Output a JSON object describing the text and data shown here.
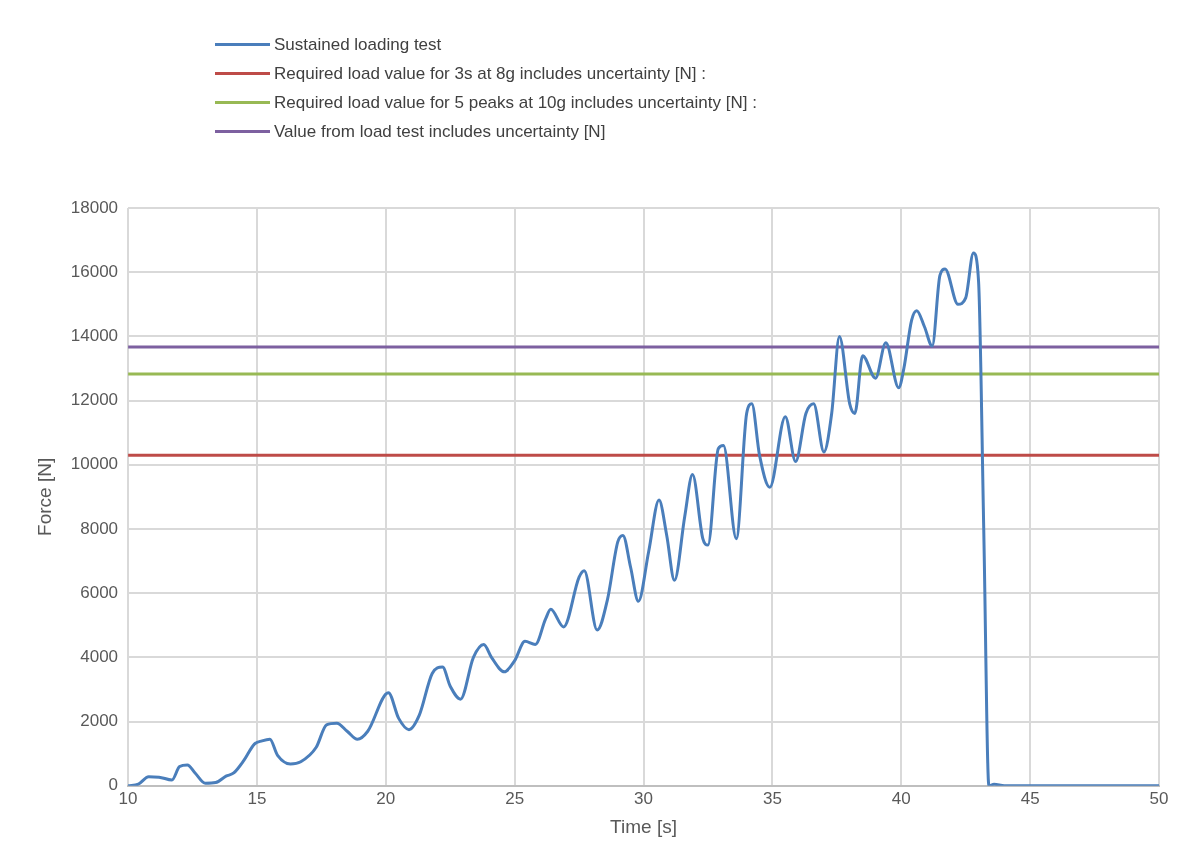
{
  "chart_data": {
    "type": "line",
    "xlabel": "Time [s]",
    "ylabel": "Force [N]",
    "xlim": [
      10,
      50
    ],
    "xticks": [
      10,
      15,
      20,
      25,
      30,
      35,
      40,
      45,
      50
    ],
    "ylim": [
      0,
      18000
    ],
    "yticks": [
      0,
      2000,
      4000,
      6000,
      8000,
      10000,
      12000,
      14000,
      16000,
      18000
    ],
    "grid": true,
    "legend": "top",
    "marker": "none",
    "line_style": "solid",
    "series": [
      {
        "name": "Sustained loading test",
        "color": "#4a7ebb",
        "x": [
          10,
          10.4,
          10.8,
          11.2,
          11.7,
          12,
          12.3,
          12.6,
          13,
          13.4,
          13.8,
          14.1,
          14.5,
          14.9,
          15.2,
          15.5,
          15.8,
          16.3,
          16.7,
          17.3,
          17.7,
          18.1,
          18.5,
          18.9,
          19.3,
          20.1,
          20.5,
          20.9,
          21.3,
          21.8,
          22.2,
          22.5,
          22.9,
          23.4,
          23.8,
          24.1,
          24.6,
          25,
          25.4,
          25.8,
          26.2,
          26.4,
          26.9,
          27.5,
          27.7,
          28.2,
          28.6,
          29,
          29.2,
          29.5,
          29.8,
          30.2,
          30.6,
          30.9,
          31.2,
          31.6,
          31.9,
          32.3,
          32.5,
          32.9,
          33.1,
          33.6,
          34,
          34.2,
          34.5,
          34.9,
          35.5,
          35.9,
          36.3,
          36.6,
          37,
          37.3,
          37.6,
          38,
          38.2,
          38.5,
          39,
          39.4,
          39.9,
          40.1,
          40.4,
          40.6,
          40.9,
          41.2,
          41.5,
          41.7,
          42.2,
          42.5,
          42.8,
          43,
          43.2,
          43.4,
          43.6,
          44,
          50
        ],
        "values": [
          0,
          50,
          280,
          270,
          180,
          600,
          650,
          400,
          80,
          100,
          300,
          400,
          800,
          1300,
          1400,
          1450,
          950,
          680,
          750,
          1200,
          1900,
          1950,
          1700,
          1450,
          1700,
          2900,
          2100,
          1750,
          2200,
          3500,
          3700,
          3100,
          2700,
          4000,
          4400,
          4000,
          3550,
          3900,
          4500,
          4400,
          5200,
          5500,
          4950,
          6500,
          6700,
          4850,
          5800,
          7600,
          7800,
          6800,
          5750,
          7300,
          8900,
          7800,
          6400,
          8400,
          9700,
          7700,
          7500,
          10500,
          10600,
          7700,
          11600,
          11900,
          10300,
          9300,
          11500,
          10100,
          11600,
          11900,
          10400,
          11600,
          14000,
          11900,
          11600,
          13400,
          12700,
          13800,
          12400,
          13000,
          14500,
          14800,
          14300,
          13700,
          15900,
          16100,
          15000,
          15200,
          16600,
          15700,
          8000,
          0,
          50,
          0,
          0
        ]
      }
    ],
    "ref_lines": [
      {
        "axis": "y",
        "value": 10300,
        "label": "Required load value for 3s at 8g includes uncertainty [N] :",
        "color": "#be4b48"
      },
      {
        "axis": "y",
        "value": 12830,
        "label": "Required load value for 5 peaks at 10g includes uncertainty [N] :",
        "color": "#98b954"
      },
      {
        "axis": "y",
        "value": 13670,
        "label": "Value from load test includes uncertainty [N]",
        "color": "#7d60a0"
      }
    ]
  }
}
